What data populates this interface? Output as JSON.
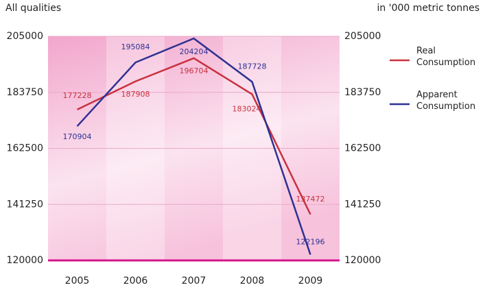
{
  "chart_data": {
    "type": "line",
    "title": "All qualities",
    "y_axis_label": "in '000 metric tonnes",
    "categories": [
      "2005",
      "2006",
      "2007",
      "2008",
      "2009"
    ],
    "series": [
      {
        "name": "Real Consumption",
        "color": "#c8313f",
        "values": [
          177228,
          187908,
          196704,
          183024,
          137472
        ]
      },
      {
        "name": "Apparent Consumption",
        "color": "#2e3192",
        "values": [
          170904,
          195084,
          204204,
          187728,
          122196
        ]
      }
    ],
    "ylim": [
      120000,
      205000
    ],
    "yticks": [
      120000,
      141250,
      162500,
      183750,
      205000
    ],
    "y2lim": [
      120000,
      205000
    ],
    "y2ticks": [
      120000,
      141250,
      162500,
      183750,
      205000
    ],
    "grid": true,
    "legend": "right"
  }
}
